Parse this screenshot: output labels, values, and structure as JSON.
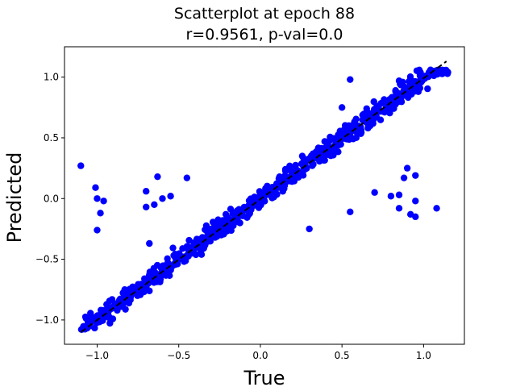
{
  "chart_data": {
    "type": "scatter",
    "title": "Scatterplot at epoch 88",
    "subtitle": "r=0.9561, p-val=0.0",
    "xlabel": "True",
    "ylabel": "Predicted",
    "xlim": [
      -1.2,
      1.25
    ],
    "ylim": [
      -1.2,
      1.25
    ],
    "xticks": [
      -1.0,
      -0.5,
      0.0,
      0.5,
      1.0
    ],
    "yticks": [
      -1.0,
      -0.5,
      0.0,
      0.5,
      1.0
    ],
    "xtick_labels": [
      "−1.0",
      "−0.5",
      "0.0",
      "0.5",
      "1.0"
    ],
    "ytick_labels": [
      "−1.0",
      "−0.5",
      "0.0",
      "0.5",
      "1.0"
    ],
    "grid": false,
    "marker_color": "#0000ff",
    "reference_line": {
      "style": "dashed",
      "color": "#000000",
      "x": [
        -1.1,
        1.14
      ],
      "y": [
        -1.1,
        1.13
      ]
    },
    "outliers": [
      [
        -1.1,
        0.27
      ],
      [
        -1.01,
        0.09
      ],
      [
        -0.96,
        -0.02
      ],
      [
        -1.0,
        0.0
      ],
      [
        -0.98,
        -0.12
      ],
      [
        -1.0,
        -0.26
      ],
      [
        -0.7,
        0.06
      ],
      [
        -0.63,
        0.18
      ],
      [
        -0.7,
        -0.07
      ],
      [
        -0.65,
        -0.05
      ],
      [
        -0.6,
        0.0
      ],
      [
        -0.55,
        0.02
      ],
      [
        -0.45,
        0.17
      ],
      [
        -0.68,
        -0.37
      ],
      [
        -0.3,
        -0.25
      ],
      [
        0.55,
        0.98
      ],
      [
        0.55,
        -0.11
      ],
      [
        0.3,
        -0.25
      ],
      [
        0.7,
        0.05
      ],
      [
        0.88,
        0.17
      ],
      [
        0.9,
        0.25
      ],
      [
        0.95,
        0.19
      ],
      [
        0.8,
        0.02
      ],
      [
        0.85,
        0.03
      ],
      [
        0.85,
        -0.08
      ],
      [
        0.95,
        -0.02
      ],
      [
        0.95,
        -0.15
      ],
      [
        1.08,
        -0.08
      ],
      [
        0.92,
        -0.13
      ],
      [
        0.5,
        0.75
      ]
    ],
    "main_trend": {
      "x_range": [
        -1.1,
        1.15
      ],
      "slope": 1.0,
      "intercept": 0.0,
      "spread": 0.075,
      "count": 700
    }
  }
}
